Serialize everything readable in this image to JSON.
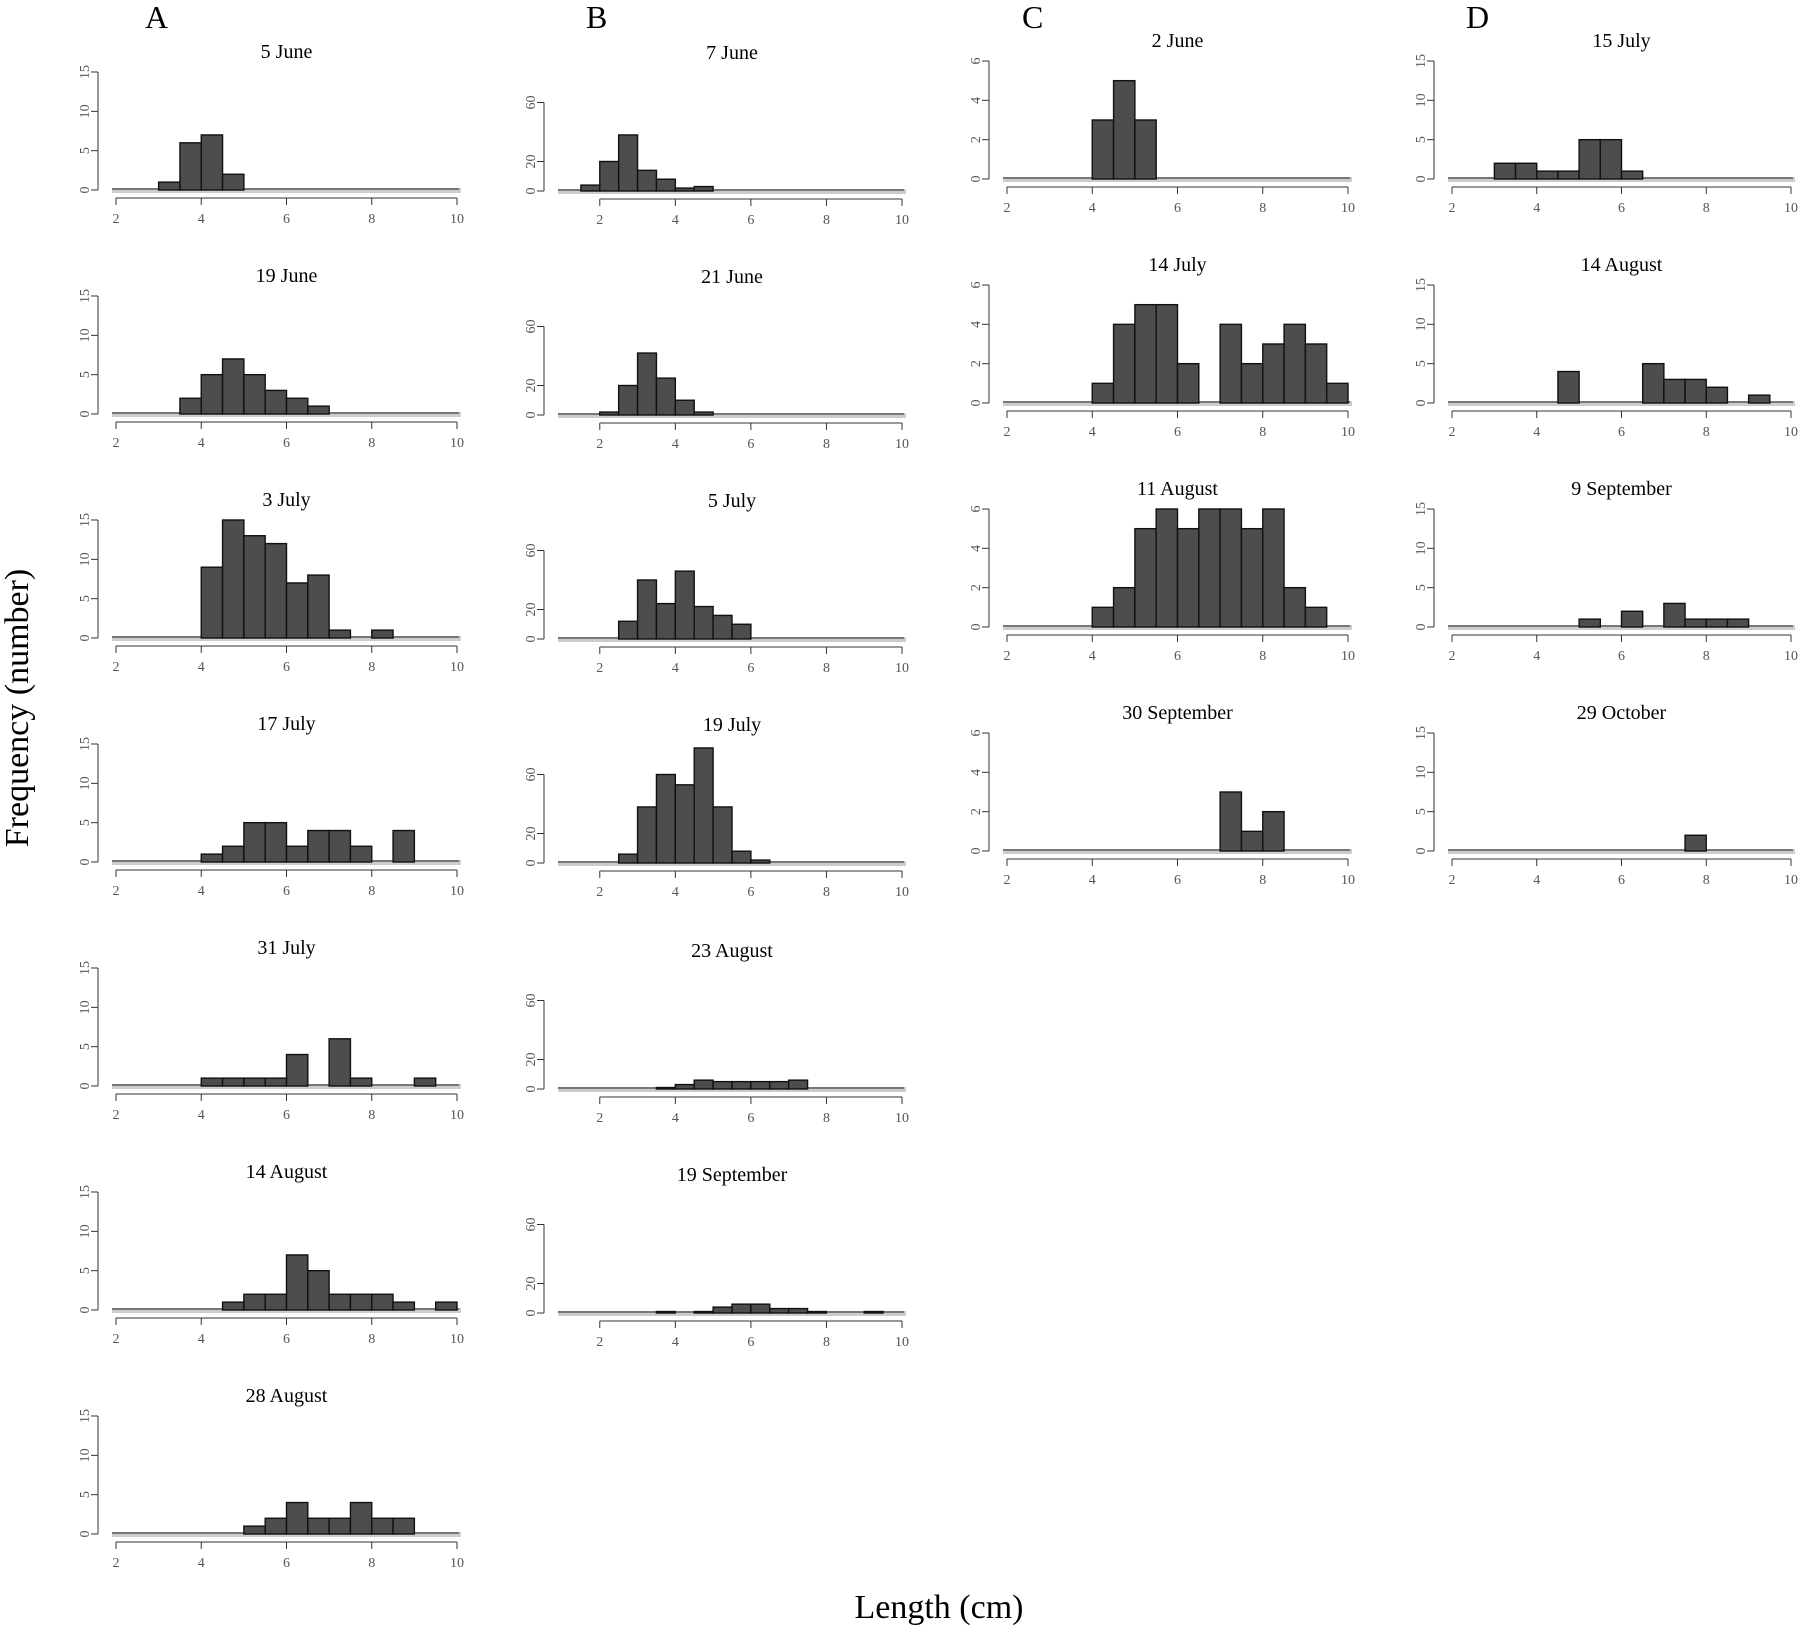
{
  "figure": {
    "ylabel": "Frequency (number)",
    "xlabel": "Length (cm)",
    "bar_fill": "#4d4d4d",
    "bar_stroke": "#111111",
    "baseline_color": "#cccccc"
  },
  "chart_data": [
    {
      "type": "bar",
      "column": "A",
      "title": "5 June",
      "bin_start": 3.0,
      "bin_width": 0.5,
      "values": [
        1,
        6,
        7,
        2
      ],
      "xlim": [
        2,
        10
      ],
      "ylim": [
        0,
        15
      ],
      "xticks": [
        2,
        4,
        6,
        8,
        10
      ],
      "yticks": [
        0,
        5,
        10,
        15
      ]
    },
    {
      "type": "bar",
      "column": "A",
      "title": "19 June",
      "bin_start": 3.5,
      "bin_width": 0.5,
      "values": [
        2,
        5,
        7,
        5,
        3,
        2,
        1
      ],
      "xlim": [
        2,
        10
      ],
      "ylim": [
        0,
        15
      ],
      "xticks": [
        2,
        4,
        6,
        8,
        10
      ],
      "yticks": [
        0,
        5,
        10,
        15
      ]
    },
    {
      "type": "bar",
      "column": "A",
      "title": "3 July",
      "bin_start": 4.0,
      "bin_width": 0.5,
      "values": [
        9,
        15,
        13,
        12,
        7,
        8,
        1,
        0,
        1
      ],
      "xlim": [
        2,
        10
      ],
      "ylim": [
        0,
        15
      ],
      "xticks": [
        2,
        4,
        6,
        8,
        10
      ],
      "yticks": [
        0,
        5,
        10,
        15
      ]
    },
    {
      "type": "bar",
      "column": "A",
      "title": "17 July",
      "bin_start": 4.0,
      "bin_width": 0.5,
      "values": [
        1,
        2,
        5,
        5,
        2,
        4,
        4,
        2,
        0,
        4
      ],
      "xlim": [
        2,
        10
      ],
      "ylim": [
        0,
        15
      ],
      "xticks": [
        2,
        4,
        6,
        8,
        10
      ],
      "yticks": [
        0,
        5,
        10,
        15
      ]
    },
    {
      "type": "bar",
      "column": "A",
      "title": "31 July",
      "bin_start": 4.0,
      "bin_width": 0.5,
      "values": [
        1,
        1,
        1,
        1,
        4,
        0,
        6,
        1,
        0,
        0,
        1
      ],
      "xlim": [
        2,
        10
      ],
      "ylim": [
        0,
        15
      ],
      "xticks": [
        2,
        4,
        6,
        8,
        10
      ],
      "yticks": [
        0,
        5,
        10,
        15
      ]
    },
    {
      "type": "bar",
      "column": "A",
      "title": "14 August",
      "bin_start": 4.5,
      "bin_width": 0.5,
      "values": [
        1,
        2,
        2,
        7,
        5,
        2,
        2,
        2,
        1,
        0,
        1
      ],
      "xlim": [
        2,
        10
      ],
      "ylim": [
        0,
        15
      ],
      "xticks": [
        2,
        4,
        6,
        8,
        10
      ],
      "yticks": [
        0,
        5,
        10,
        15
      ]
    },
    {
      "type": "bar",
      "column": "A",
      "title": "28 August",
      "bin_start": 5.0,
      "bin_width": 0.5,
      "values": [
        1,
        2,
        4,
        2,
        2,
        4,
        2,
        2
      ],
      "xlim": [
        2,
        10
      ],
      "ylim": [
        0,
        15
      ],
      "xticks": [
        2,
        4,
        6,
        8,
        10
      ],
      "yticks": [
        0,
        5,
        10,
        15
      ]
    },
    {
      "type": "bar",
      "column": "B",
      "title": "7 June",
      "bin_start": 1.5,
      "bin_width": 0.5,
      "values": [
        4,
        20,
        38,
        14,
        8,
        2,
        3
      ],
      "xlim": [
        1,
        10
      ],
      "ylim": [
        0,
        80
      ],
      "xticks": [
        2,
        4,
        6,
        8,
        10
      ],
      "yticks": [
        0,
        20,
        60
      ]
    },
    {
      "type": "bar",
      "column": "B",
      "title": "21 June",
      "bin_start": 2.0,
      "bin_width": 0.5,
      "values": [
        2,
        20,
        42,
        25,
        10,
        2
      ],
      "xlim": [
        1,
        10
      ],
      "ylim": [
        0,
        80
      ],
      "xticks": [
        2,
        4,
        6,
        8,
        10
      ],
      "yticks": [
        0,
        20,
        60
      ]
    },
    {
      "type": "bar",
      "column": "B",
      "title": "5 July",
      "bin_start": 2.5,
      "bin_width": 0.5,
      "values": [
        12,
        40,
        24,
        46,
        22,
        16,
        10
      ],
      "xlim": [
        1,
        10
      ],
      "ylim": [
        0,
        80
      ],
      "xticks": [
        2,
        4,
        6,
        8,
        10
      ],
      "yticks": [
        0,
        20,
        60
      ]
    },
    {
      "type": "bar",
      "column": "B",
      "title": "19 July",
      "bin_start": 2.5,
      "bin_width": 0.5,
      "values": [
        6,
        38,
        60,
        53,
        78,
        38,
        8,
        2
      ],
      "xlim": [
        1,
        10
      ],
      "ylim": [
        0,
        80
      ],
      "xticks": [
        2,
        4,
        6,
        8,
        10
      ],
      "yticks": [
        0,
        20,
        60
      ]
    },
    {
      "type": "bar",
      "column": "B",
      "title": "23 August",
      "bin_start": 3.5,
      "bin_width": 0.5,
      "values": [
        1,
        3,
        6,
        5,
        5,
        5,
        5,
        6
      ],
      "xlim": [
        1,
        10
      ],
      "ylim": [
        0,
        80
      ],
      "xticks": [
        2,
        4,
        6,
        8,
        10
      ],
      "yticks": [
        0,
        20,
        60
      ]
    },
    {
      "type": "bar",
      "column": "B",
      "title": "19 September",
      "bin_start": 3.5,
      "bin_width": 0.5,
      "values": [
        1,
        0,
        1,
        4,
        6,
        6,
        3,
        3,
        1,
        0,
        0,
        1
      ],
      "xlim": [
        1,
        10
      ],
      "ylim": [
        0,
        80
      ],
      "xticks": [
        2,
        4,
        6,
        8,
        10
      ],
      "yticks": [
        0,
        20,
        60
      ]
    },
    {
      "type": "bar",
      "column": "C",
      "title": "2 June",
      "bin_start": 4.0,
      "bin_width": 0.5,
      "values": [
        3,
        5,
        3
      ],
      "xlim": [
        2,
        10
      ],
      "ylim": [
        0,
        6
      ],
      "xticks": [
        2,
        4,
        6,
        8,
        10
      ],
      "yticks": [
        0,
        2,
        4,
        6
      ]
    },
    {
      "type": "bar",
      "column": "C",
      "title": "14 July",
      "bin_start": 4.0,
      "bin_width": 0.5,
      "values": [
        1,
        4,
        5,
        5,
        2,
        0,
        4,
        2,
        3,
        4,
        3,
        1
      ],
      "xlim": [
        2,
        10
      ],
      "ylim": [
        0,
        6
      ],
      "xticks": [
        2,
        4,
        6,
        8,
        10
      ],
      "yticks": [
        0,
        2,
        4,
        6
      ]
    },
    {
      "type": "bar",
      "column": "C",
      "title": "11 August",
      "bin_start": 4.0,
      "bin_width": 0.5,
      "values": [
        1,
        2,
        5,
        6,
        5,
        6,
        6,
        5,
        6,
        2,
        1
      ],
      "xlim": [
        2,
        10
      ],
      "ylim": [
        0,
        6
      ],
      "xticks": [
        2,
        4,
        6,
        8,
        10
      ],
      "yticks": [
        0,
        2,
        4,
        6
      ]
    },
    {
      "type": "bar",
      "column": "C",
      "title": "30 September",
      "bin_start": 7.0,
      "bin_width": 0.5,
      "values": [
        3,
        1,
        2
      ],
      "xlim": [
        2,
        10
      ],
      "ylim": [
        0,
        6
      ],
      "xticks": [
        2,
        4,
        6,
        8,
        10
      ],
      "yticks": [
        0,
        2,
        4,
        6
      ]
    },
    {
      "type": "bar",
      "column": "D",
      "title": "15 July",
      "bin_start": 3.0,
      "bin_width": 0.5,
      "values": [
        2,
        2,
        1,
        1,
        5,
        5,
        1
      ],
      "xlim": [
        2,
        10
      ],
      "ylim": [
        0,
        15
      ],
      "xticks": [
        2,
        4,
        6,
        8,
        10
      ],
      "yticks": [
        0,
        5,
        10,
        15
      ]
    },
    {
      "type": "bar",
      "column": "D",
      "title": "14 August",
      "bin_start": 4.5,
      "bin_width": 0.5,
      "values": [
        4,
        0,
        0,
        0,
        5,
        3,
        3,
        2,
        0,
        1
      ],
      "xlim": [
        2,
        10
      ],
      "ylim": [
        0,
        15
      ],
      "xticks": [
        2,
        4,
        6,
        8,
        10
      ],
      "yticks": [
        0,
        5,
        10,
        15
      ]
    },
    {
      "type": "bar",
      "column": "D",
      "title": "9 September",
      "bin_start": 5.0,
      "bin_width": 0.5,
      "values": [
        1,
        0,
        2,
        0,
        3,
        1,
        1,
        1
      ],
      "xlim": [
        2,
        10
      ],
      "ylim": [
        0,
        15
      ],
      "xticks": [
        2,
        4,
        6,
        8,
        10
      ],
      "yticks": [
        0,
        5,
        10,
        15
      ]
    },
    {
      "type": "bar",
      "column": "D",
      "title": "29 October",
      "bin_start": 7.5,
      "bin_width": 0.5,
      "values": [
        2
      ],
      "xlim": [
        2,
        10
      ],
      "ylim": [
        0,
        15
      ],
      "xticks": [
        2,
        4,
        6,
        8,
        10
      ],
      "yticks": [
        0,
        5,
        10,
        15
      ]
    }
  ]
}
